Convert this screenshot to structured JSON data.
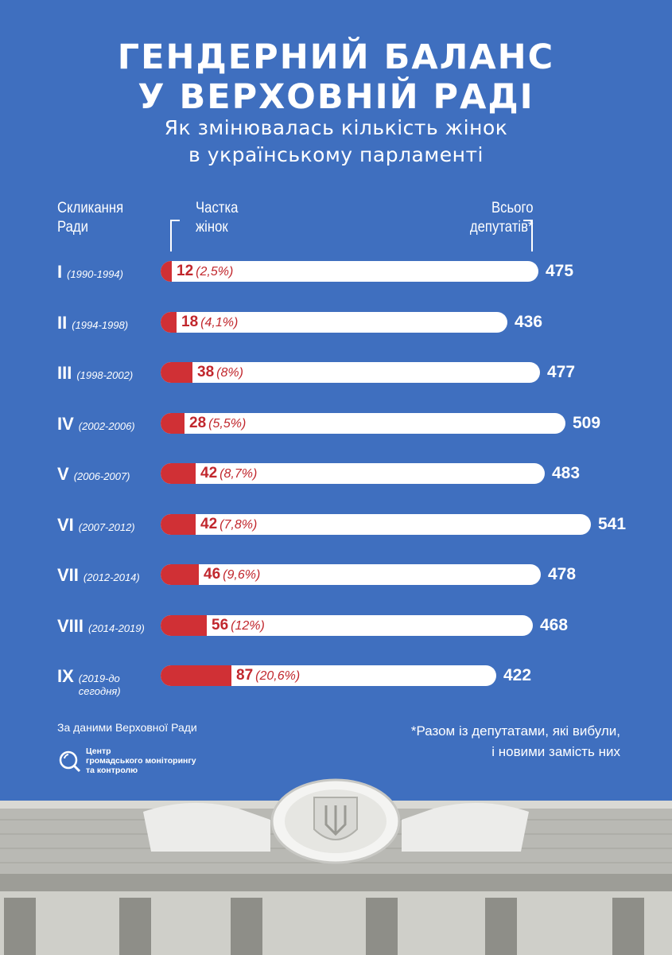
{
  "title": {
    "line1": "ГЕНДЕРНИЙ БАЛАНС",
    "line2": "У ВЕРХОВНІЙ РАДІ"
  },
  "subtitle": {
    "line1": "Як змінювалась кількість жінок",
    "line2": "в українському парламенті"
  },
  "headers": {
    "convocation": [
      "Скликання",
      "Ради"
    ],
    "share": [
      "Частка",
      "жінок"
    ],
    "total": [
      "Всього",
      "депутатів*"
    ]
  },
  "chart_data": {
    "type": "bar",
    "orientation": "horizontal",
    "categories": [
      "I",
      "II",
      "III",
      "IV",
      "V",
      "VI",
      "VII",
      "VIII",
      "IX"
    ],
    "periods": [
      "(1990-1994)",
      "(1994-1998)",
      "(1998-2002)",
      "(2002-2006)",
      "(2006-2007)",
      "(2007-2012)",
      "(2012-2014)",
      "(2014-2019)",
      "(2019-до сегодня)"
    ],
    "women": [
      12,
      18,
      38,
      28,
      42,
      42,
      46,
      56,
      87
    ],
    "women_labels": [
      "12",
      "18",
      "38",
      "28",
      "42",
      "42",
      "46",
      "56",
      "87"
    ],
    "share_labels": [
      "(2,5%)",
      "(4,1%)",
      "(8%)",
      "(5,5%)",
      "(8,7%)",
      "(7,8%)",
      "(9,6%)",
      "(12%)",
      "(20,6%)"
    ],
    "totals": [
      475,
      436,
      477,
      509,
      483,
      541,
      478,
      468,
      422
    ],
    "total_labels": [
      "475",
      "436",
      "477",
      "509",
      "483",
      "541",
      "478",
      "468",
      "422"
    ],
    "colors": {
      "women": "#d03035",
      "total": "#ffffff",
      "label": "#c1272d",
      "background": "#3f6fbf"
    }
  },
  "source": "За даними Верховної Ради",
  "logo": {
    "line1": "Центр",
    "line2": "громадського моніторингу",
    "line3": "та контролю"
  },
  "footnote": {
    "line1": "*Разом із депутатами, які вибули,",
    "line2": "і новими замість них"
  }
}
